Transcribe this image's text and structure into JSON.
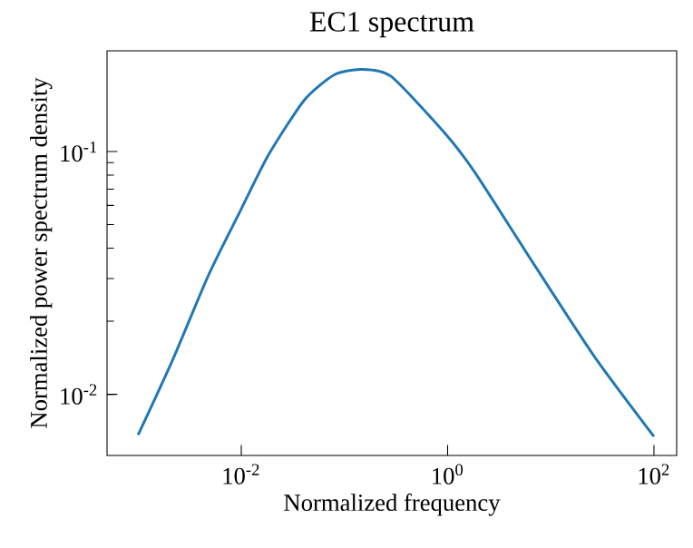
{
  "chart_data": {
    "type": "line",
    "title": "EC1 spectrum",
    "xlabel": "Normalized frequency",
    "ylabel": "Normalized power spectrum density",
    "log": "xy",
    "x": [
      0.001,
      0.00217,
      0.00482,
      0.01,
      0.0184,
      0.0409,
      0.0796,
      0.145,
      0.283,
      0.94,
      1.84,
      6.97,
      26.5,
      100
    ],
    "series": [
      {
        "color": "#1f77b4",
        "values": [
          0.0068,
          0.0139,
          0.031,
          0.058,
          0.097,
          0.163,
          0.207,
          0.218,
          0.204,
          0.119,
          0.082,
          0.034,
          0.0143,
          0.0067
        ]
      }
    ],
    "xlim": [
      0.0005,
      166
    ],
    "ylim": [
      0.0056,
      0.26
    ],
    "xticks": [
      {
        "value": 0.01,
        "label": "10$^{-2}$"
      },
      {
        "value": 1,
        "label": "10$^{0}$"
      },
      {
        "value": 100,
        "label": "10$^{2}$"
      }
    ],
    "yticks": [
      {
        "value": 0.01,
        "label": "10$^{-2}$"
      },
      {
        "value": 0.1,
        "label": "10$^{-1}$"
      }
    ],
    "grid": false,
    "marker": "none",
    "line_style": "solid"
  }
}
